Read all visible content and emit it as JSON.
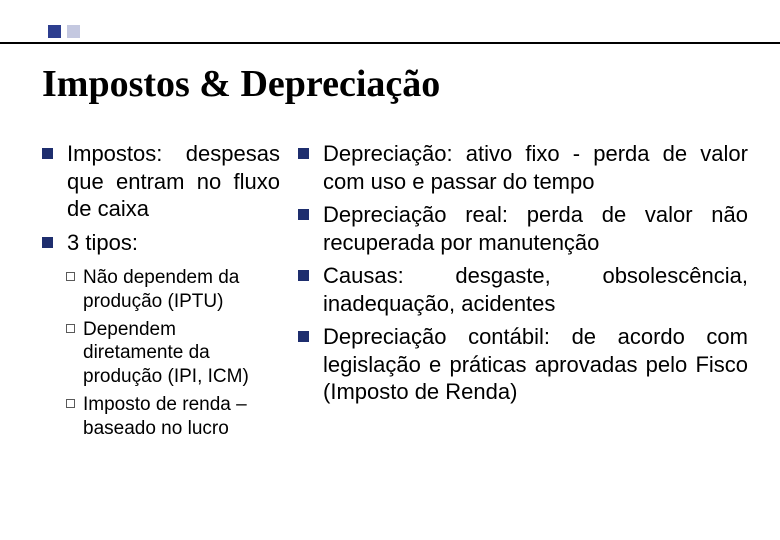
{
  "colors": {
    "bullet_primary": "#1e2e6e",
    "bullet_hollow_border": "#5a5a5a",
    "top_square_dark": "#2d3e8f",
    "top_square_light": "#c4c8e0",
    "rule": "#000000",
    "bg": "#ffffff",
    "text": "#000000"
  },
  "title": "Impostos & Depreciação",
  "left": {
    "items": [
      "Impostos: despesas que entram no fluxo de caixa",
      "3 tipos:"
    ],
    "sub": [
      "Não dependem da produção (IPTU)",
      "Dependem diretamente da produção (IPI, ICM)",
      "Imposto de renda – baseado no lucro"
    ]
  },
  "right": {
    "items": [
      "Depreciação: ativo fixo - perda de valor com uso e passar do tempo",
      "Depreciação real: perda de valor não recuperada por manutenção",
      "Causas: desgaste, obsolescência, inadequação, acidentes",
      "Depreciação contábil: de acordo com legislação e práticas aprovadas pelo Fisco (Imposto de Renda)"
    ]
  },
  "fonts": {
    "title_size": 38,
    "body_size": 22,
    "sub_size": 19
  }
}
